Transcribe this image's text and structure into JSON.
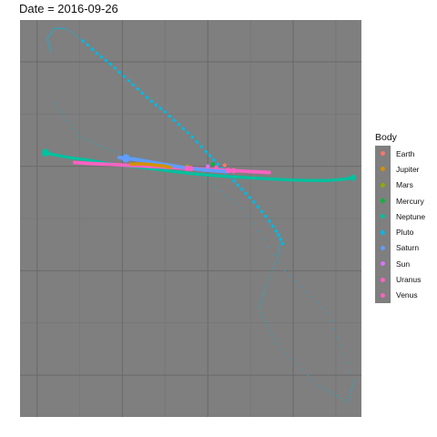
{
  "chart_data": {
    "type": "scatter",
    "title": "Date = 2016-09-26",
    "xlabel": "",
    "ylabel": "",
    "grid": true,
    "legend": {
      "title": "Body",
      "placement": "right"
    },
    "xlim": [
      -11,
      9
    ],
    "ylim": [
      -12,
      7
    ],
    "series": [
      {
        "name": "Earth",
        "color": "#F8766D",
        "x": [
          0.99
        ],
        "y": [
          0.05
        ]
      },
      {
        "name": "Jupiter",
        "color": "#D39200",
        "points": [
          [
            -4.5,
            0.1
          ],
          [
            -4.0,
            0.12
          ],
          [
            -3.5,
            0.1
          ],
          [
            -3.0,
            0.05
          ],
          [
            -2.6,
            0.02
          ],
          [
            -2.2,
            -0.05
          ]
        ]
      },
      {
        "name": "Mars",
        "color": "#93AA00",
        "x": [
          -1.2
        ],
        "y": [
          0.0
        ]
      },
      {
        "name": "Mercury",
        "color": "#00BA38",
        "x": [
          0.3
        ],
        "y": [
          0.1
        ]
      },
      {
        "name": "Neptune",
        "color": "#00C19F",
        "points": [
          [
            -9.5,
            0.65
          ],
          [
            -9.0,
            0.55
          ],
          [
            -8.0,
            0.4
          ],
          [
            -7.0,
            0.3
          ],
          [
            -6.0,
            0.15
          ],
          [
            -5.0,
            0.05
          ],
          [
            -4.0,
            -0.05
          ],
          [
            -3.0,
            -0.15
          ],
          [
            -2.0,
            -0.25
          ],
          [
            -1.0,
            -0.35
          ],
          [
            0.0,
            -0.42
          ],
          [
            1.0,
            -0.48
          ],
          [
            2.0,
            -0.53
          ],
          [
            3.0,
            -0.58
          ],
          [
            4.0,
            -0.62
          ],
          [
            5.0,
            -0.66
          ],
          [
            6.0,
            -0.68
          ],
          [
            7.0,
            -0.68
          ],
          [
            8.0,
            -0.62
          ],
          [
            8.5,
            -0.55
          ]
        ]
      },
      {
        "name": "Pluto",
        "color": "#00B9E3",
        "points": [
          [
            -9.2,
            5.5
          ],
          [
            -9.4,
            6.1
          ],
          [
            -9.0,
            6.6
          ],
          [
            -8.3,
            6.6
          ],
          [
            -7.3,
            6.0
          ],
          [
            -6.0,
            5.1
          ],
          [
            -4.5,
            4.0
          ],
          [
            -3.0,
            3.0
          ],
          [
            -1.5,
            1.9
          ],
          [
            0.0,
            0.6
          ],
          [
            1.0,
            -0.3
          ],
          [
            2.0,
            -1.1
          ],
          [
            3.0,
            -2.0
          ],
          [
            3.9,
            -2.9
          ],
          [
            4.3,
            -3.5
          ],
          [
            4.1,
            -4.3
          ],
          [
            3.4,
            -5.8
          ],
          [
            3.0,
            -6.8
          ],
          [
            4.0,
            -8.5
          ],
          [
            6.5,
            -10.5
          ],
          [
            8.2,
            -11.3
          ],
          [
            8.6,
            -10.2
          ],
          [
            7.0,
            -7.0
          ],
          [
            4.5,
            -5.0
          ],
          [
            2.0,
            -2.0
          ],
          [
            -0.5,
            -0.4
          ],
          [
            -3.0,
            0.2
          ],
          [
            -5.5,
            0.7
          ],
          [
            -7.5,
            1.4
          ],
          [
            -9.0,
            3.0
          ]
        ],
        "highlight": [
          [
            -7.3,
            6.0
          ],
          [
            -6.5,
            5.4
          ],
          [
            -5.7,
            4.9
          ],
          [
            -4.9,
            4.3
          ],
          [
            -4.1,
            3.7
          ],
          [
            -3.3,
            3.1
          ],
          [
            -2.5,
            2.6
          ],
          [
            -1.7,
            2.0
          ],
          [
            -0.9,
            1.4
          ],
          [
            -0.1,
            0.7
          ],
          [
            0.6,
            0.1
          ],
          [
            1.3,
            -0.5
          ],
          [
            2.0,
            -1.1
          ],
          [
            2.7,
            -1.7
          ],
          [
            3.4,
            -2.4
          ],
          [
            4.0,
            -3.1
          ],
          [
            4.4,
            -3.7
          ]
        ]
      },
      {
        "name": "Saturn",
        "color": "#619CFF",
        "points": [
          [
            -5.2,
            0.42
          ],
          [
            -4.8,
            0.38
          ],
          [
            -4.3,
            0.33
          ],
          [
            -3.8,
            0.27
          ],
          [
            -3.2,
            0.18
          ],
          [
            -2.6,
            0.1
          ],
          [
            -2.0,
            0.02
          ],
          [
            -1.4,
            -0.06
          ],
          [
            -0.8,
            -0.12
          ],
          [
            -0.2,
            -0.18
          ],
          [
            0.4,
            -0.22
          ],
          [
            1.0,
            -0.25
          ]
        ]
      },
      {
        "name": "Sun",
        "color": "#DB72FB",
        "x": [
          0.0
        ],
        "y": [
          0.0
        ]
      },
      {
        "name": "Uranus",
        "color": "#FF61C3",
        "points": [
          [
            -7.8,
            0.18
          ],
          [
            -7.2,
            0.15
          ],
          [
            -6.6,
            0.12
          ],
          [
            -6.0,
            0.1
          ],
          [
            -5.4,
            0.08
          ],
          [
            -4.8,
            0.05
          ],
          [
            -4.2,
            0.02
          ],
          [
            -3.6,
            0.0
          ],
          [
            -3.0,
            -0.02
          ],
          [
            -2.4,
            -0.05
          ],
          [
            -1.8,
            -0.07
          ],
          [
            -1.2,
            -0.1
          ],
          [
            -0.6,
            -0.12
          ],
          [
            0.0,
            -0.15
          ],
          [
            0.6,
            -0.17
          ],
          [
            1.2,
            -0.2
          ],
          [
            1.8,
            -0.22
          ],
          [
            2.4,
            -0.25
          ],
          [
            3.0,
            -0.27
          ],
          [
            3.6,
            -0.3
          ]
        ]
      },
      {
        "name": "Venus",
        "color": "#FF61C3",
        "x": [
          0.5
        ],
        "y": [
          -0.05
        ]
      }
    ]
  }
}
